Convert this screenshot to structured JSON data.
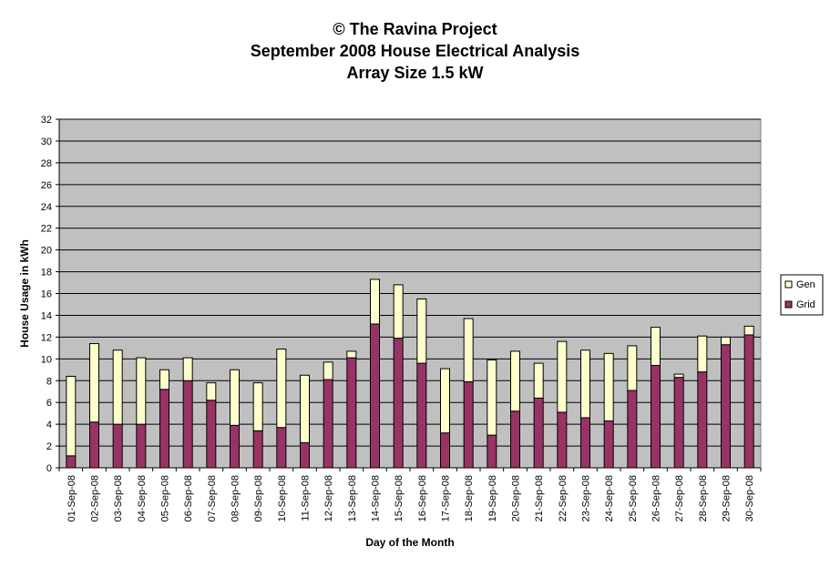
{
  "chart_data": {
    "type": "bar",
    "stacked": true,
    "title": "© The Ravina Project",
    "subtitle": "September 2008 House Electrical Analysis",
    "subtitle2": "Array Size 1.5 kW",
    "xlabel": "Day of the Month",
    "ylabel": "House Usage in kWh",
    "ylim": [
      0,
      32
    ],
    "yticks": [
      0,
      2,
      4,
      6,
      8,
      10,
      12,
      14,
      16,
      18,
      20,
      22,
      24,
      26,
      28,
      30,
      32
    ],
    "grid": true,
    "legend_position": "right",
    "legend": [
      "Gen",
      "Grid"
    ],
    "categories": [
      "01-Sep-08",
      "02-Sep-08",
      "03-Sep-08",
      "04-Sep-08",
      "05-Sep-08",
      "06-Sep-08",
      "07-Sep-08",
      "08-Sep-08",
      "09-Sep-08",
      "10-Sep-08",
      "11-Sep-08",
      "12-Sep-08",
      "13-Sep-08",
      "14-Sep-08",
      "15-Sep-08",
      "16-Sep-08",
      "17-Sep-08",
      "18-Sep-08",
      "19-Sep-08",
      "20-Sep-08",
      "21-Sep-08",
      "22-Sep-08",
      "23-Sep-08",
      "24-Sep-08",
      "25-Sep-08",
      "26-Sep-08",
      "27-Sep-08",
      "28-Sep-08",
      "29-Sep-08",
      "30-Sep-08"
    ],
    "series": [
      {
        "name": "Grid",
        "color": "#993366",
        "values": [
          1.1,
          4.2,
          4.0,
          4.0,
          7.2,
          8.0,
          6.2,
          3.9,
          3.4,
          3.7,
          2.3,
          8.1,
          10.1,
          13.2,
          11.9,
          9.6,
          3.2,
          7.9,
          3.0,
          5.2,
          6.4,
          5.1,
          4.6,
          4.3,
          7.1,
          9.4,
          8.3,
          8.8,
          11.3,
          12.2
        ]
      },
      {
        "name": "Gen",
        "color": "#FFFFCC",
        "values": [
          7.3,
          7.2,
          6.8,
          6.1,
          1.8,
          2.1,
          1.6,
          5.1,
          4.4,
          7.2,
          6.2,
          1.6,
          0.6,
          4.1,
          4.9,
          5.9,
          5.9,
          5.8,
          6.9,
          5.5,
          3.2,
          6.5,
          6.2,
          6.2,
          4.1,
          3.5,
          0.3,
          3.3,
          0.7,
          0.8
        ]
      }
    ],
    "colors": {
      "plot_background": "#C0C0C0",
      "grid": "#000000"
    }
  }
}
